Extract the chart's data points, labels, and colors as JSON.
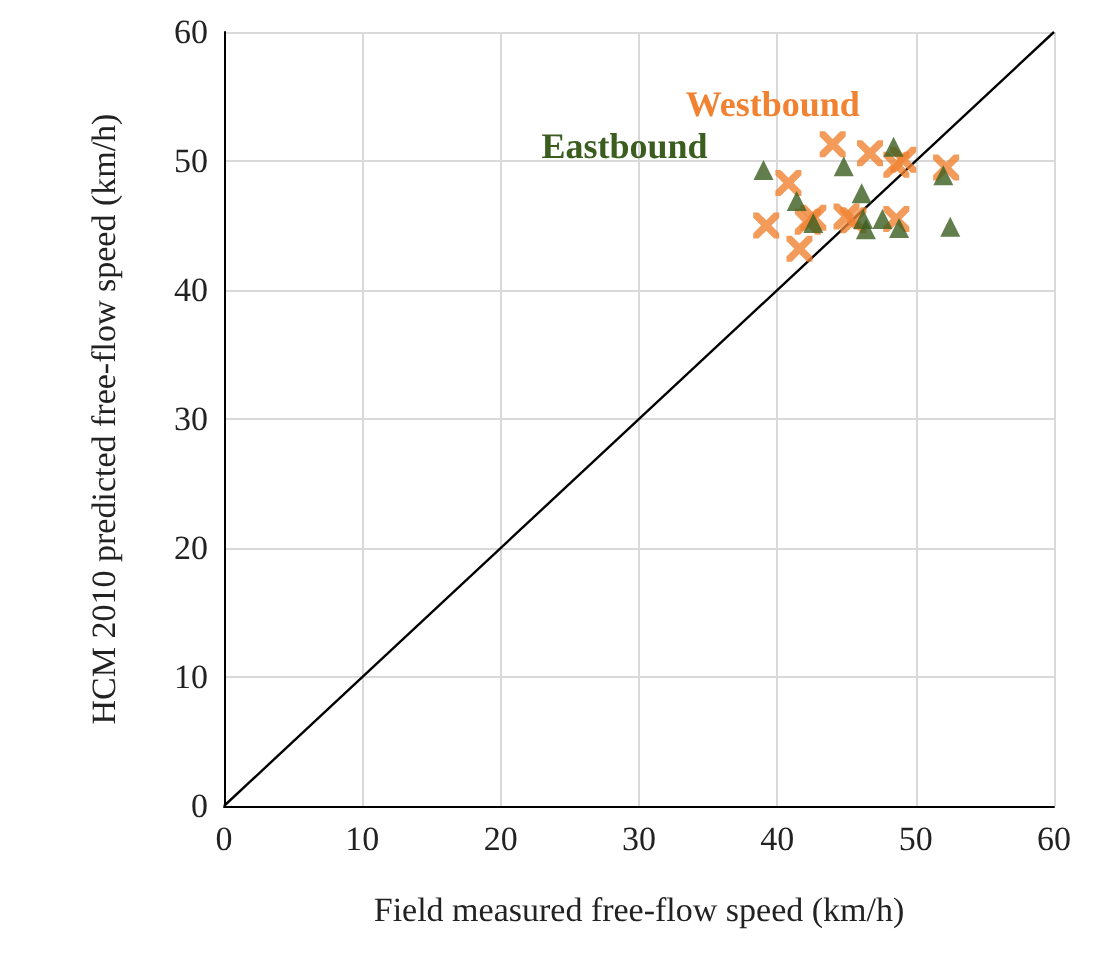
{
  "chart_data": {
    "type": "scatter",
    "xlabel": "Field measured free-flow speed (km/h)",
    "ylabel": "HCM 2010 predicted free-flow speed (km/h)",
    "xlim": [
      0,
      60
    ],
    "xticks": [
      0,
      10,
      20,
      30,
      40,
      50,
      60
    ],
    "ylim": [
      0,
      60
    ],
    "yticks": [
      0,
      10,
      20,
      30,
      40,
      50,
      60
    ],
    "grid": true,
    "legend": false,
    "series": [
      {
        "name": "Eastbound",
        "color": "#3b5e1f",
        "marker": "triangle",
        "x": [
          39.0,
          44.8,
          48.4,
          41.4,
          46.1,
          52.0,
          42.6,
          46.2,
          47.6,
          46.4,
          48.8,
          52.5
        ],
        "values": [
          49.3,
          49.6,
          51.1,
          46.9,
          47.5,
          48.9,
          45.2,
          45.5,
          45.5,
          44.7,
          44.8,
          44.9
        ]
      },
      {
        "name": "Westbound",
        "color": "#f08232",
        "marker": "cross",
        "x": [
          44.0,
          46.7,
          48.6,
          49.1,
          52.2,
          40.8,
          39.2,
          42.6,
          42.2,
          41.6,
          45.0,
          45.5,
          48.6
        ],
        "values": [
          51.3,
          50.6,
          49.7,
          50.1,
          49.5,
          48.3,
          45.0,
          45.6,
          45.3,
          43.2,
          45.7,
          45.4,
          45.5
        ]
      },
      {
        "type": "line",
        "color": "#000000",
        "marker": "none",
        "line_style": "solid",
        "x": [
          0,
          60
        ],
        "values": [
          0,
          60
        ]
      }
    ]
  }
}
